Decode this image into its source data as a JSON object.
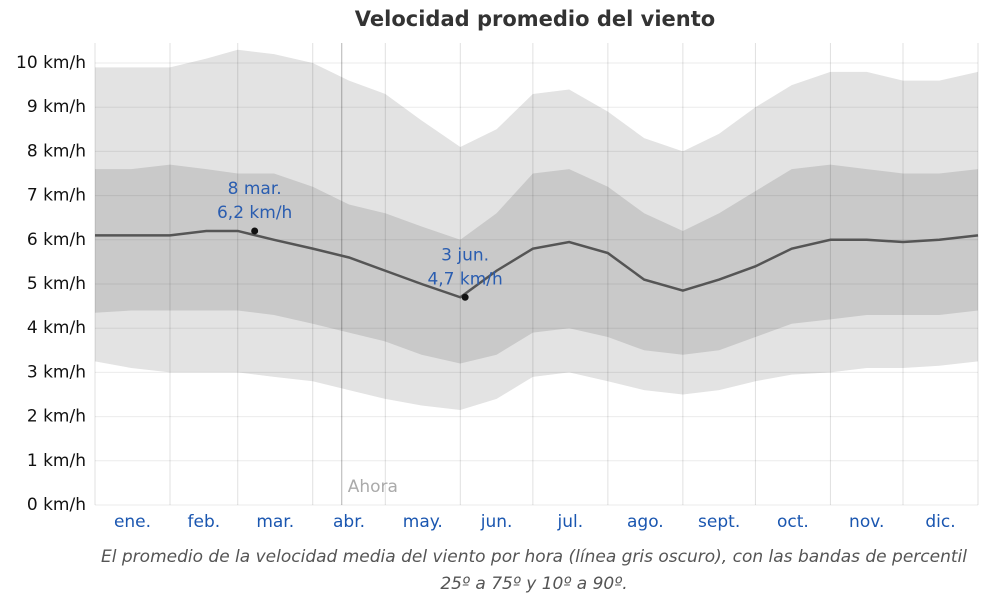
{
  "chart_data": {
    "type": "band_line",
    "title": "Velocidad promedio del viento",
    "caption": "El promedio de la velocidad media del viento por hora (línea gris oscuro), con las bandas de percentil 25º a 75º y 10º a 90º.",
    "categories": [
      "ene.",
      "feb.",
      "mar.",
      "abr.",
      "may.",
      "jun.",
      "jul.",
      "ago.",
      "sept.",
      "oct.",
      "nov.",
      "dic."
    ],
    "xgrid": [
      0,
      31,
      59,
      90,
      120,
      151,
      181,
      212,
      243,
      273,
      304,
      334,
      365
    ],
    "xlim": [
      0,
      365
    ],
    "ylim": [
      0,
      10
    ],
    "yticks": [
      {
        "value": 0,
        "label": "0 km/h"
      },
      {
        "value": 1,
        "label": "1 km/h"
      },
      {
        "value": 2,
        "label": "2 km/h"
      },
      {
        "value": 3,
        "label": "3 km/h"
      },
      {
        "value": 4,
        "label": "4 km/h"
      },
      {
        "value": 5,
        "label": "5 km/h"
      },
      {
        "value": 6,
        "label": "6 km/h"
      },
      {
        "value": 7,
        "label": "7 km/h"
      },
      {
        "value": 8,
        "label": "8 km/h"
      },
      {
        "value": 9,
        "label": "9 km/h"
      },
      {
        "value": 10,
        "label": "10 km/h"
      }
    ],
    "grid": true,
    "x": [
      0,
      15,
      31,
      46,
      59,
      74,
      90,
      105,
      120,
      135,
      151,
      166,
      181,
      196,
      212,
      227,
      243,
      258,
      273,
      288,
      304,
      319,
      334,
      349,
      365
    ],
    "series": [
      {
        "name": "p10",
        "color": "#e3e3e3",
        "values": [
          3.25,
          3.1,
          3.0,
          3.0,
          3.0,
          2.9,
          2.8,
          2.6,
          2.4,
          2.25,
          2.15,
          2.4,
          2.9,
          3.0,
          2.8,
          2.6,
          2.5,
          2.6,
          2.8,
          2.95,
          3.0,
          3.1,
          3.1,
          3.15,
          3.25
        ]
      },
      {
        "name": "p25",
        "color": "#c9c9c9",
        "values": [
          4.35,
          4.4,
          4.4,
          4.4,
          4.4,
          4.3,
          4.1,
          3.9,
          3.7,
          3.4,
          3.2,
          3.4,
          3.9,
          4.0,
          3.8,
          3.5,
          3.4,
          3.5,
          3.8,
          4.1,
          4.2,
          4.3,
          4.3,
          4.3,
          4.4
        ]
      },
      {
        "name": "mean",
        "color": "#555555",
        "values": [
          6.1,
          6.1,
          6.1,
          6.2,
          6.2,
          6.0,
          5.8,
          5.6,
          5.3,
          5.0,
          4.7,
          5.3,
          5.8,
          5.95,
          5.7,
          5.1,
          4.85,
          5.1,
          5.4,
          5.8,
          6.0,
          6.0,
          5.95,
          6.0,
          6.1
        ]
      },
      {
        "name": "p75",
        "color": "#c9c9c9",
        "values": [
          7.6,
          7.6,
          7.7,
          7.6,
          7.5,
          7.5,
          7.2,
          6.8,
          6.6,
          6.3,
          6.0,
          6.6,
          7.5,
          7.6,
          7.2,
          6.6,
          6.2,
          6.6,
          7.1,
          7.6,
          7.7,
          7.6,
          7.5,
          7.5,
          7.6
        ]
      },
      {
        "name": "p90",
        "color": "#e3e3e3",
        "values": [
          9.9,
          9.9,
          9.9,
          10.1,
          10.3,
          10.2,
          10.0,
          9.6,
          9.3,
          8.7,
          8.1,
          8.5,
          9.3,
          9.4,
          8.9,
          8.3,
          8.0,
          8.4,
          9.0,
          9.5,
          9.8,
          9.8,
          9.6,
          9.6,
          9.8
        ]
      }
    ],
    "annotations": [
      {
        "x": 66,
        "value": 6.2,
        "date_label": "8 mar.",
        "value_label": "6,2 km/h"
      },
      {
        "x": 153,
        "value": 4.7,
        "date_label": "3 jun.",
        "value_label": "4,7 km/h"
      }
    ],
    "now_marker": {
      "x": 102,
      "label": "Ahora"
    }
  }
}
